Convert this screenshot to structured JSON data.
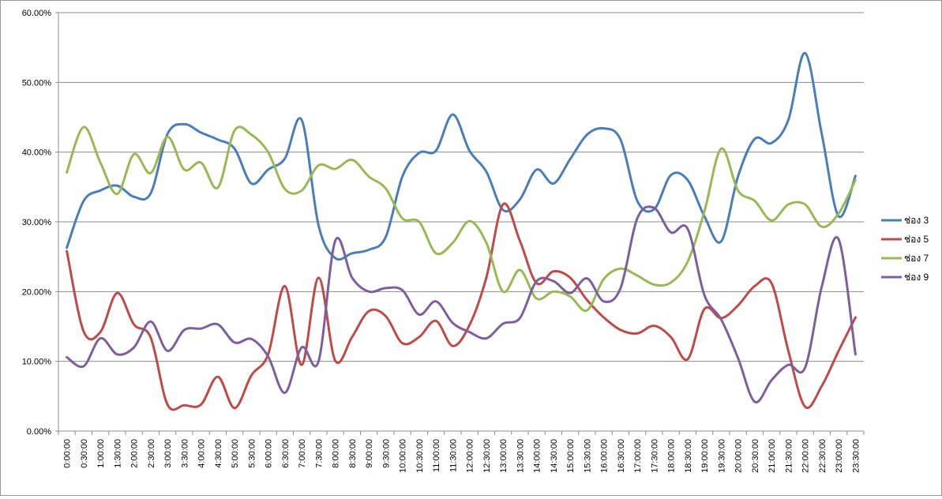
{
  "chart_data": {
    "type": "line",
    "title": "",
    "xlabel": "",
    "ylabel": "",
    "ylim": [
      0,
      60
    ],
    "y_ticks": [
      0,
      10,
      20,
      30,
      40,
      50,
      60
    ],
    "y_tick_labels": [
      "0.00%",
      "10.00%",
      "20.00%",
      "30.00%",
      "40.00%",
      "50.00%",
      "60.00%"
    ],
    "grid": "horizontal",
    "legend_position": "right",
    "smooth": true,
    "categories": [
      "0:00:00",
      "0:30:00",
      "1:00:00",
      "1:30:00",
      "2:00:00",
      "2:30:00",
      "3:00:00",
      "3:30:00",
      "4:00:00",
      "4:30:00",
      "5:00:00",
      "5:30:00",
      "6:00:00",
      "6:30:00",
      "7:00:00",
      "7:30:00",
      "8:00:00",
      "8:30:00",
      "9:00:00",
      "9:30:00",
      "10:00:00",
      "10:30:00",
      "11:00:00",
      "11:30:00",
      "12:00:00",
      "12:30:00",
      "13:00:00",
      "13:30:00",
      "14:00:00",
      "14:30:00",
      "15:00:00",
      "15:30:00",
      "16:00:00",
      "16:30:00",
      "17:00:00",
      "17:30:00",
      "18:00:00",
      "18:30:00",
      "19:00:00",
      "19:30:00",
      "20:00:00",
      "20:30:00",
      "21:00:00",
      "21:30:00",
      "22:00:00",
      "22:30:00",
      "23:00:00",
      "23:30:00"
    ],
    "series": [
      {
        "name": "ช่อง 3",
        "color": "#4a7ebb",
        "values": [
          26.3,
          33,
          34.5,
          35.2,
          33.6,
          34.1,
          42.6,
          44.0,
          42.8,
          41.8,
          40.5,
          35.5,
          37.5,
          39.1,
          44.6,
          29.5,
          24.8,
          25.5,
          26.0,
          27.8,
          36.5,
          39.9,
          40.2,
          45.4,
          40.2,
          37.2,
          31.7,
          33.2,
          37.5,
          35.5,
          39.0,
          42.5,
          43.4,
          41.8,
          33.0,
          31.8,
          36.7,
          36.0,
          30.8,
          27.2,
          36.5,
          41.9,
          41.3,
          44.6,
          54.2,
          42.5,
          30.8,
          36.6
        ]
      },
      {
        "name": "ช่อง 5",
        "color": "#be4b48",
        "values": [
          25.8,
          14.3,
          14.2,
          19.8,
          15.3,
          13.4,
          3.8,
          3.7,
          3.8,
          7.8,
          3.3,
          8.0,
          11.0,
          20.8,
          9.5,
          22.0,
          10.1,
          13.5,
          17.2,
          16.5,
          12.6,
          13.5,
          15.8,
          12.2,
          15.2,
          22.0,
          32.5,
          27.3,
          21.2,
          22.9,
          22.0,
          18.8,
          16.3,
          14.5,
          14.0,
          15.1,
          13.5,
          10.3,
          17.5,
          16.2,
          18.0,
          20.8,
          21.2,
          11.5,
          3.5,
          6.5,
          11.5,
          16.3
        ]
      },
      {
        "name": "ช่อง 7",
        "color": "#98b954",
        "values": [
          37.1,
          43.6,
          38.5,
          34.0,
          39.7,
          37.0,
          42.2,
          37.5,
          38.5,
          34.9,
          43.1,
          42.5,
          40.0,
          34.7,
          34.5,
          38.1,
          37.6,
          38.9,
          36.5,
          34.8,
          30.5,
          30.0,
          25.5,
          27.0,
          30.1,
          27.0,
          20.0,
          23.1,
          19.0,
          20.0,
          19.3,
          17.3,
          21.8,
          23.3,
          22.3,
          21.0,
          21.3,
          24.3,
          31.5,
          40.5,
          34.5,
          33.0,
          30.2,
          32.5,
          32.5,
          29.3,
          31.2,
          36.0
        ]
      },
      {
        "name": "ช่อง 9",
        "color": "#7d5fa0",
        "values": [
          10.6,
          9.3,
          13.3,
          11.0,
          12.0,
          15.7,
          11.5,
          14.5,
          14.7,
          15.3,
          12.7,
          13.2,
          10.7,
          5.5,
          12.0,
          10.0,
          27.3,
          22.0,
          20.0,
          20.5,
          20.2,
          16.7,
          18.6,
          15.5,
          14.2,
          13.3,
          15.4,
          16.2,
          21.5,
          21.5,
          19.8,
          21.9,
          18.6,
          20.5,
          30.5,
          32.0,
          28.5,
          29.0,
          19.5,
          16.0,
          10.5,
          4.2,
          7.3,
          9.5,
          9.1,
          20.8,
          27.5,
          11.0
        ]
      }
    ]
  }
}
